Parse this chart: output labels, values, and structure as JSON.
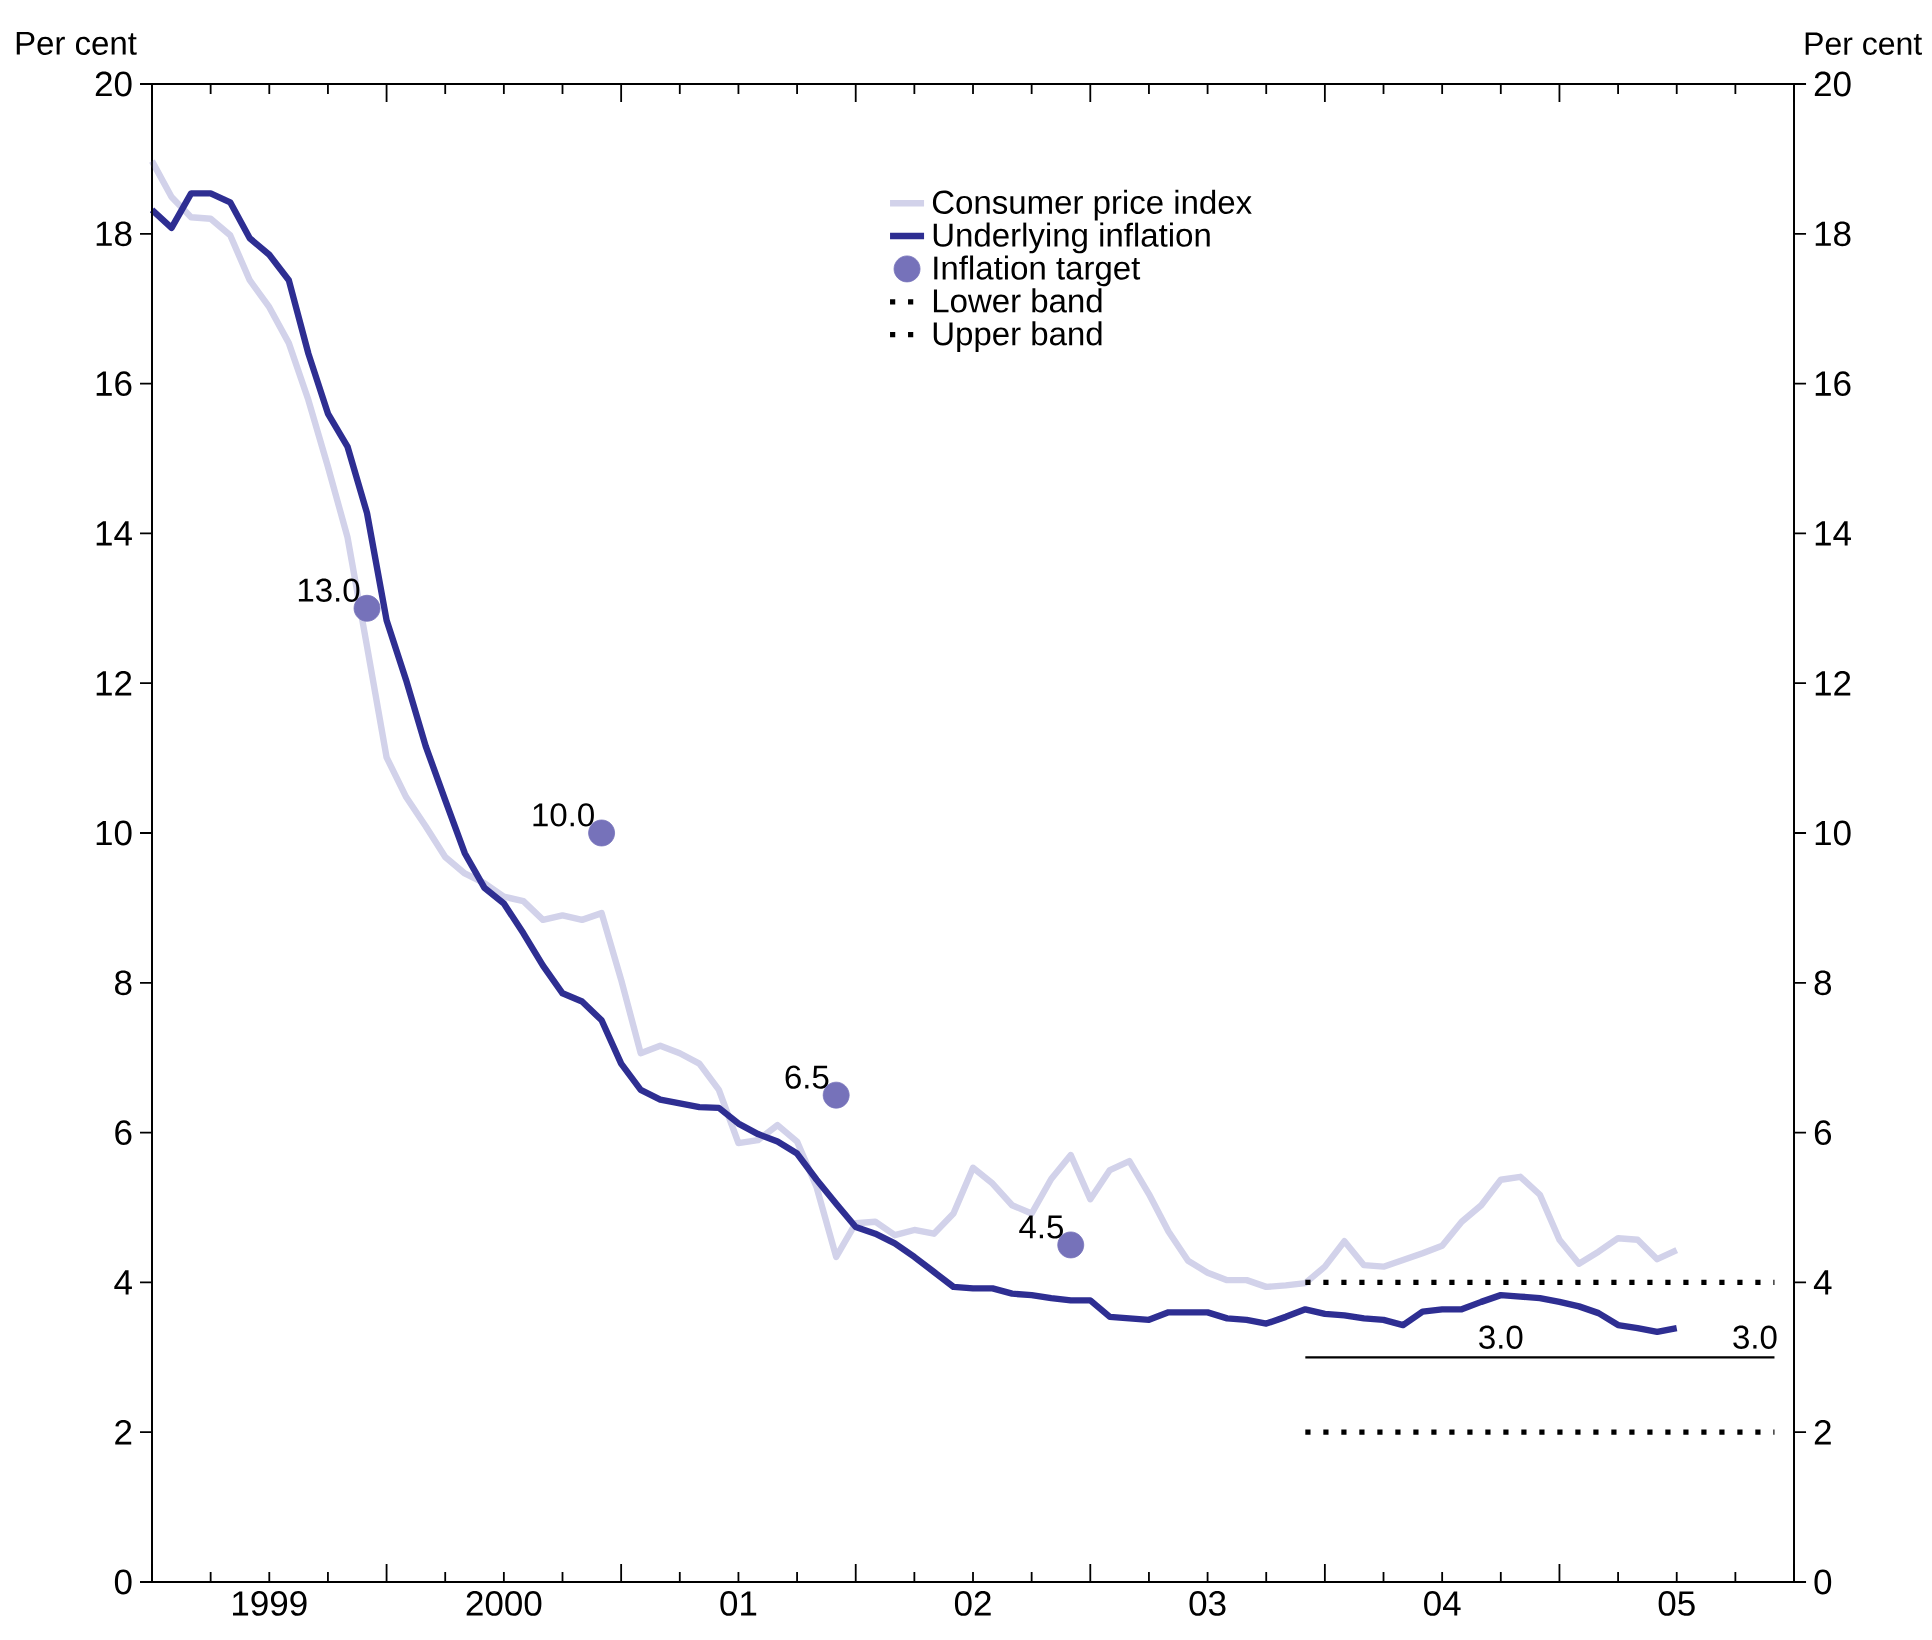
{
  "chart_data": {
    "type": "line",
    "ylabel": "Per cent",
    "y2label": "Per cent",
    "x": [
      "1999-01",
      "1999-02",
      "1999-03",
      "1999-04",
      "1999-05",
      "1999-06",
      "1999-07",
      "1999-08",
      "1999-09",
      "1999-10",
      "1999-11",
      "1999-12",
      "2000-01",
      "2000-02",
      "2000-03",
      "2000-04",
      "2000-05",
      "2000-06",
      "2000-07",
      "2000-08",
      "2000-09",
      "2000-10",
      "2000-11",
      "2000-12",
      "2001-01",
      "2001-02",
      "2001-03",
      "2001-04",
      "2001-05",
      "2001-06",
      "2001-07",
      "2001-08",
      "2001-09",
      "2001-10",
      "2001-11",
      "2001-12",
      "2002-01",
      "2002-02",
      "2002-03",
      "2002-04",
      "2002-05",
      "2002-06",
      "2002-07",
      "2002-08",
      "2002-09",
      "2002-10",
      "2002-11",
      "2002-12",
      "2003-01",
      "2003-02",
      "2003-03",
      "2003-04",
      "2003-05",
      "2003-06",
      "2003-07",
      "2003-08",
      "2003-09",
      "2003-10",
      "2003-11",
      "2003-12",
      "2004-01",
      "2004-02",
      "2004-03",
      "2004-04",
      "2004-05",
      "2004-06",
      "2004-07",
      "2004-08",
      "2004-09",
      "2004-10",
      "2004-11",
      "2004-12",
      "2005-01",
      "2005-02",
      "2005-03",
      "2005-04",
      "2005-05",
      "2005-06",
      "2005-07"
    ],
    "series": [
      {
        "name": "Consumer price index",
        "color": "#d2d2ea",
        "line_style": "solid",
        "marker": "none",
        "values": [
          18.97,
          18.49,
          18.22,
          18.2,
          17.98,
          17.38,
          17.02,
          16.54,
          15.78,
          14.89,
          13.95,
          12.49,
          11.01,
          10.48,
          10.09,
          9.68,
          9.46,
          9.33,
          9.15,
          9.09,
          8.84,
          8.9,
          8.84,
          8.93,
          8.04,
          7.06,
          7.16,
          7.06,
          6.92,
          6.57,
          5.86,
          5.9,
          6.1,
          5.88,
          5.27,
          4.34,
          4.79,
          4.81,
          4.63,
          4.7,
          4.65,
          4.92,
          5.53,
          5.32,
          5.03,
          4.92,
          5.38,
          5.7,
          5.11,
          5.5,
          5.62,
          5.18,
          4.68,
          4.29,
          4.13,
          4.03,
          4.03,
          3.94,
          3.96,
          3.99,
          4.21,
          4.55,
          4.23,
          4.21,
          4.3,
          4.39,
          4.49,
          4.81,
          5.03,
          5.37,
          5.41,
          5.17,
          4.57,
          4.25,
          4.41,
          4.59,
          4.57,
          4.31,
          4.43
        ]
      },
      {
        "name": "Underlying inflation",
        "color": "#2e2e92",
        "line_style": "solid",
        "marker": "none",
        "values": [
          18.32,
          18.08,
          18.54,
          18.54,
          18.42,
          17.94,
          17.72,
          17.38,
          16.4,
          15.6,
          15.16,
          14.27,
          12.84,
          12.04,
          11.16,
          10.44,
          9.73,
          9.27,
          9.06,
          8.66,
          8.23,
          7.86,
          7.75,
          7.5,
          6.92,
          6.57,
          6.44,
          6.39,
          6.34,
          6.33,
          6.12,
          5.98,
          5.88,
          5.72,
          5.37,
          5.05,
          4.74,
          4.65,
          4.52,
          4.34,
          4.14,
          3.94,
          3.92,
          3.92,
          3.85,
          3.83,
          3.79,
          3.76,
          3.76,
          3.54,
          3.52,
          3.5,
          3.6,
          3.6,
          3.6,
          3.52,
          3.5,
          3.45,
          3.54,
          3.64,
          3.58,
          3.56,
          3.52,
          3.5,
          3.43,
          3.61,
          3.64,
          3.64,
          3.74,
          3.83,
          3.81,
          3.79,
          3.74,
          3.68,
          3.59,
          3.43,
          3.39,
          3.34,
          3.39
        ]
      },
      {
        "name": "Inflation target",
        "type": "scatter",
        "color": "#7672ba",
        "marker": "circle",
        "x": [
          "1999-12",
          "2000-12",
          "2001-12",
          "2002-12"
        ],
        "values": [
          13.0,
          10.0,
          6.5,
          4.5
        ],
        "value_labels": [
          "13.0",
          "10.0",
          "6.5",
          "4.5"
        ]
      },
      {
        "name": "Lower band",
        "color": "#000000",
        "line_style": "dotted",
        "marker": "none",
        "x": [
          "2003-12",
          "2005-12"
        ],
        "values": [
          2,
          2
        ]
      },
      {
        "name": "Upper band",
        "color": "#000000",
        "line_style": "dotted",
        "marker": "none",
        "x": [
          "2003-12",
          "2005-12"
        ],
        "values": [
          4,
          4
        ]
      },
      {
        "color": "#000000",
        "line_style": "solid",
        "marker": "none",
        "x": [
          "2003-12",
          "2005-12"
        ],
        "values": [
          3,
          3
        ]
      }
    ],
    "annotations": [
      {
        "text": "3.0",
        "x": "2004-10",
        "y": 3.0
      },
      {
        "text": "3.0",
        "x": "2005-11",
        "y": 3.0
      }
    ],
    "xlim": [
      "1999-01",
      "2006-01"
    ],
    "xticks": [
      {
        "value": "1999-01",
        "label": null
      },
      {
        "value": "1999-04",
        "label": null
      },
      {
        "value": "1999-07",
        "label": "1999"
      },
      {
        "value": "1999-10",
        "label": null
      },
      {
        "value": "2000-01",
        "label": null
      },
      {
        "value": "2000-04",
        "label": null
      },
      {
        "value": "2000-07",
        "label": "2000"
      },
      {
        "value": "2000-10",
        "label": null
      },
      {
        "value": "2001-01",
        "label": null
      },
      {
        "value": "2001-04",
        "label": null
      },
      {
        "value": "2001-07",
        "label": "01"
      },
      {
        "value": "2001-10",
        "label": null
      },
      {
        "value": "2002-01",
        "label": null
      },
      {
        "value": "2002-04",
        "label": null
      },
      {
        "value": "2002-07",
        "label": "02"
      },
      {
        "value": "2002-10",
        "label": null
      },
      {
        "value": "2003-01",
        "label": null
      },
      {
        "value": "2003-04",
        "label": null
      },
      {
        "value": "2003-07",
        "label": "03"
      },
      {
        "value": "2003-10",
        "label": null
      },
      {
        "value": "2004-01",
        "label": null
      },
      {
        "value": "2004-04",
        "label": null
      },
      {
        "value": "2004-07",
        "label": "04"
      },
      {
        "value": "2004-10",
        "label": null
      },
      {
        "value": "2005-01",
        "label": null
      },
      {
        "value": "2005-04",
        "label": null
      },
      {
        "value": "2005-07",
        "label": "05"
      },
      {
        "value": "2005-10",
        "label": null
      },
      {
        "value": "2006-01",
        "label": null
      }
    ],
    "ylim": [
      0,
      20
    ],
    "yticks": [
      0,
      2,
      4,
      6,
      8,
      10,
      12,
      14,
      16,
      18,
      20
    ],
    "y2lim": [
      0,
      20
    ],
    "y2ticks": [
      0,
      2,
      4,
      6,
      8,
      10,
      12,
      14,
      16,
      18,
      20
    ],
    "legend": "top"
  }
}
